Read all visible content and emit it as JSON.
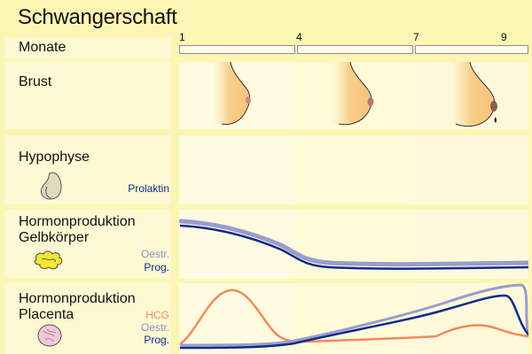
{
  "title": "Schwangerschaft",
  "months": {
    "label": "Monate",
    "ticks": [
      "1",
      "4",
      "7",
      "9"
    ]
  },
  "rows": {
    "breast": {
      "label": "Brust"
    },
    "pituitary": {
      "label": "Hypophyse",
      "legend": [
        "Prolaktin"
      ]
    },
    "corpus_luteum": {
      "label_line1": "Hormonproduktion",
      "label_line2": "Gelbkörper",
      "legend": [
        "Oestr.",
        "Prog."
      ]
    },
    "placenta": {
      "label_line1": "Hormonproduktion",
      "label_line2": "Placenta",
      "legend": [
        "HCG",
        "Oestr.",
        "Prog."
      ]
    }
  },
  "colors": {
    "background": "#fbf6b4",
    "panel": "#fdf9d2",
    "prolactin": "#0a2b8c",
    "progesterone": "#0a2b8c",
    "oestrogen": "#9a9ccc",
    "hcg": "#f08a5a",
    "corpus_luteum_icon": "#f4e832",
    "placenta_icon": "#f5c6d8",
    "pituitary_icon": "#d9d2b8"
  },
  "icons": {
    "breast": "breast-profile-icon",
    "pituitary": "pituitary-gland-icon",
    "corpus_luteum": "corpus-luteum-icon",
    "placenta": "placenta-icon"
  }
}
